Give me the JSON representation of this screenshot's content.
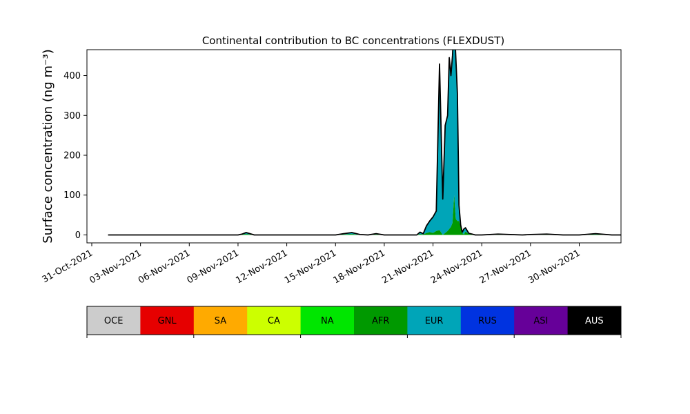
{
  "chart_data": {
    "type": "area",
    "title": "Continental contribution to BC concentrations (FLEXDUST)",
    "ylabel": "Surface concentration (ng m⁻³)",
    "xlabel": "",
    "xlim": [
      "2021-10-31",
      "2021-12-05"
    ],
    "ylim": [
      -20,
      465
    ],
    "yticks": [
      0,
      100,
      200,
      300,
      400
    ],
    "xticks": [
      "31-Oct-2021",
      "03-Nov-2021",
      "06-Nov-2021",
      "09-Nov-2021",
      "12-Nov-2021",
      "15-Nov-2021",
      "18-Nov-2021",
      "21-Nov-2021",
      "24-Nov-2021",
      "27-Nov-2021",
      "30-Nov-2021"
    ],
    "grid": false,
    "colors": {
      "OCE": "#cccccc",
      "GNL": "#e60000",
      "SA": "#ffaa00",
      "CA": "#ccff00",
      "NA": "#00e600",
      "AFR": "#009900",
      "EUR": "#00a5b8",
      "RUS": "#0033e0",
      "ASI": "#660099",
      "AUS": "#000000"
    },
    "legend_labels": [
      "OCE",
      "GNL",
      "SA",
      "CA",
      "NA",
      "AFR",
      "EUR",
      "RUS",
      "ASI",
      "AUS"
    ],
    "dates": [
      "2021-11-01",
      "2021-11-08",
      "2021-11-09",
      "2021-11-09.25",
      "2021-11-09.5",
      "2021-11-10",
      "2021-11-15",
      "2021-11-15.5",
      "2021-11-16",
      "2021-11-16.5",
      "2021-11-17",
      "2021-11-17.5",
      "2021-11-18",
      "2021-11-20",
      "2021-11-20.2",
      "2021-11-20.4",
      "2021-11-20.6",
      "2021-11-20.8",
      "2021-11-21",
      "2021-11-21.2",
      "2021-11-21.4",
      "2021-11-21.6",
      "2021-11-21.75",
      "2021-11-21.9",
      "2021-11-22",
      "2021-11-22.1",
      "2021-11-22.2",
      "2021-11-22.3",
      "2021-11-22.4",
      "2021-11-22.5",
      "2021-11-22.6",
      "2021-11-22.7",
      "2021-11-22.8",
      "2021-11-22.9",
      "2021-11-23",
      "2021-11-23.2",
      "2021-11-23.4",
      "2021-11-23.6",
      "2021-11-23.8",
      "2021-11-24",
      "2021-11-25",
      "2021-11-26.5",
      "2021-11-27",
      "2021-11-28",
      "2021-11-29",
      "2021-11-30",
      "2021-12-01",
      "2021-12-02",
      "2021-12-04"
    ],
    "series": [
      {
        "name": "AFR",
        "values": [
          0,
          0,
          0,
          1,
          2,
          0,
          0,
          1,
          2,
          0,
          0,
          1,
          0,
          0,
          2,
          1,
          5,
          7,
          5,
          10,
          12,
          0,
          5,
          10,
          15,
          20,
          30,
          100,
          40,
          35,
          35,
          20,
          5,
          1,
          8,
          2,
          1,
          0,
          0,
          0,
          1,
          0,
          0,
          1,
          0,
          0,
          1,
          0,
          0
        ]
      },
      {
        "name": "EUR",
        "values": [
          0,
          0,
          0,
          1,
          4,
          0,
          0,
          2,
          4,
          1,
          0,
          2,
          0,
          0,
          5,
          2,
          18,
          28,
          40,
          50,
          417,
          90,
          270,
          290,
          430,
          380,
          420,
          440,
          410,
          320,
          40,
          5,
          2,
          14,
          10,
          2,
          1,
          0,
          0,
          0,
          1,
          0,
          1,
          1,
          0,
          0,
          2,
          0,
          0
        ]
      }
    ]
  }
}
